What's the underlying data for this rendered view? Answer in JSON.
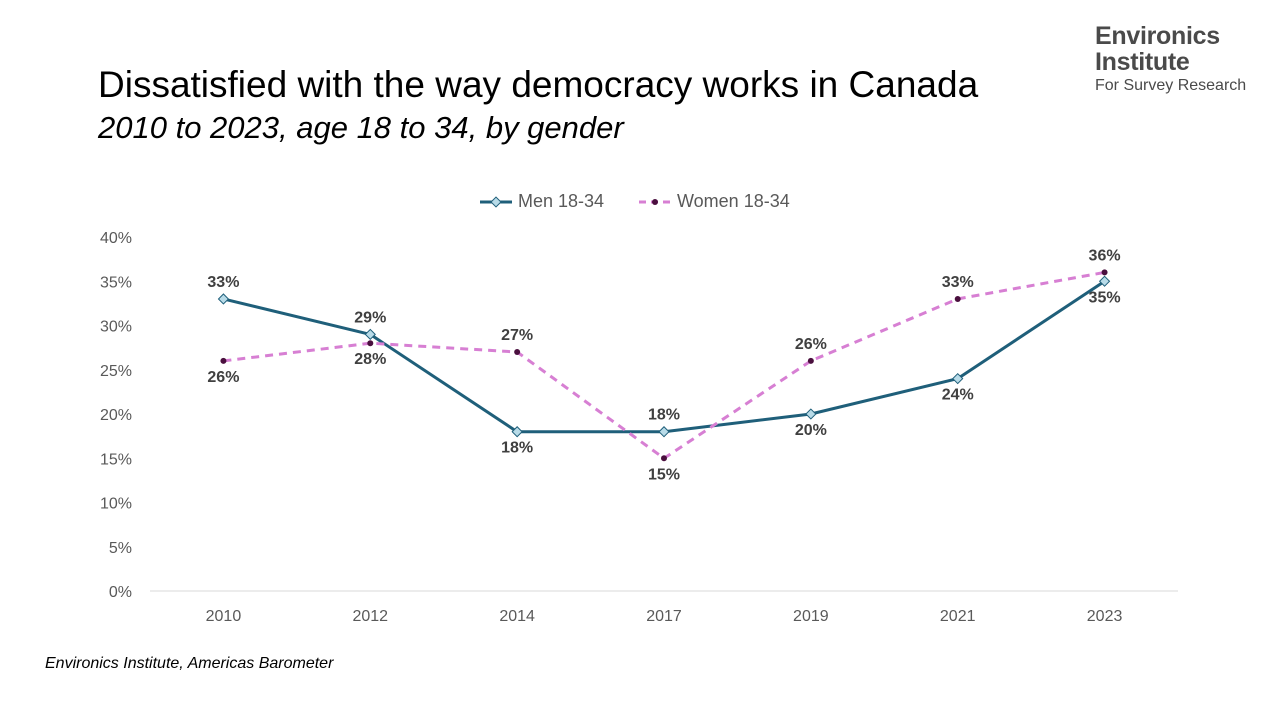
{
  "title": "Dissatisfied with the way democracy works in Canada",
  "subtitle": "2010 to 2023, age 18 to 34, by gender",
  "logo": {
    "line1": "Environics",
    "line2": "Institute",
    "line3": "For Survey Research"
  },
  "source": "Environics Institute, Americas Barometer",
  "chart_data": {
    "type": "line",
    "categories": [
      "2010",
      "2012",
      "2014",
      "2017",
      "2019",
      "2021",
      "2023"
    ],
    "ylim": [
      0,
      40
    ],
    "y_ticks": [
      "0%",
      "5%",
      "10%",
      "15%",
      "20%",
      "25%",
      "30%",
      "35%",
      "40%"
    ],
    "grid": false,
    "legend_position": "top",
    "series": [
      {
        "name": "Men 18-34",
        "values": [
          33,
          29,
          18,
          18,
          20,
          24,
          35
        ],
        "labels": [
          "33%",
          "29%",
          "18%",
          "18%",
          "20%",
          "24%",
          "35%"
        ],
        "color": "#1f5f7a",
        "marker_fill": "#b8dbe8",
        "style": "solid"
      },
      {
        "name": "Women 18-34",
        "values": [
          26,
          28,
          27,
          15,
          26,
          33,
          36
        ],
        "labels": [
          "26%",
          "28%",
          "27%",
          "15%",
          "26%",
          "33%",
          "36%"
        ],
        "color": "#d77fd3",
        "marker_fill": "#4a0f3e",
        "style": "dashed"
      }
    ]
  }
}
